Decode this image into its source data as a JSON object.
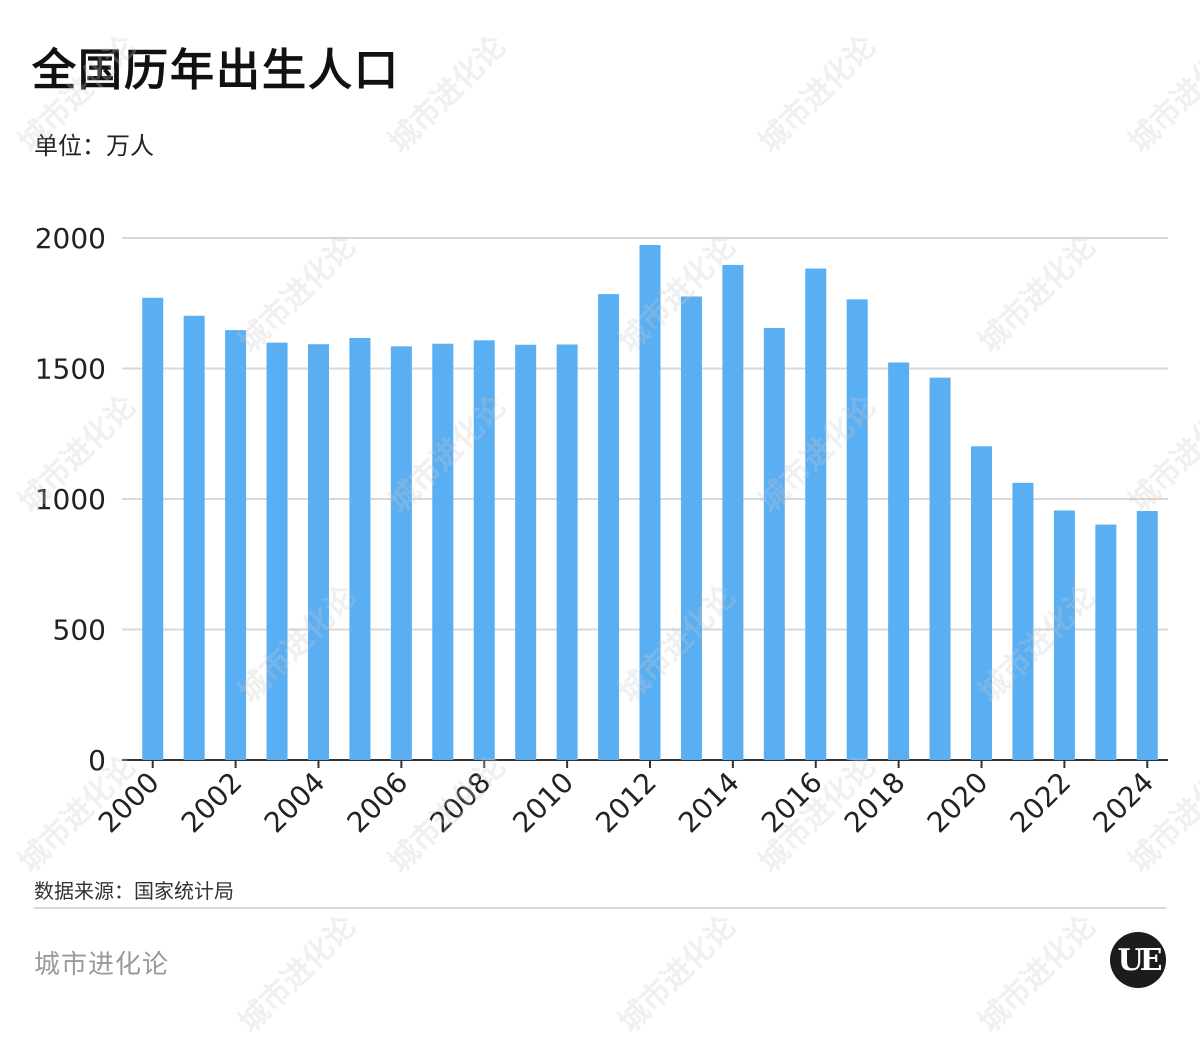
{
  "title": "全国历年出生人口",
  "unit_label": "单位：万人",
  "source": "数据来源：国家统计局",
  "brand": "城市进化论",
  "logo_text": "UE",
  "watermark_text": "城市进化论",
  "colors": {
    "bar": "#5aaef2",
    "grid": "#d9d9d9",
    "axis": "#333333",
    "text": "#222222"
  },
  "chart_data": {
    "type": "bar",
    "title": "全国历年出生人口",
    "ylabel": "单位：万人",
    "xlabel": "",
    "ylim": [
      0,
      2000
    ],
    "yticks": [
      0,
      500,
      1000,
      1500,
      2000
    ],
    "grid": true,
    "categories": [
      "2000",
      "2001",
      "2002",
      "2003",
      "2004",
      "2005",
      "2006",
      "2007",
      "2008",
      "2009",
      "2010",
      "2011",
      "2012",
      "2013",
      "2014",
      "2015",
      "2016",
      "2017",
      "2018",
      "2019",
      "2020",
      "2021",
      "2022",
      "2023",
      "2024"
    ],
    "xtick_labels": [
      "2000",
      "2002",
      "2004",
      "2006",
      "2008",
      "2010",
      "2012",
      "2014",
      "2016",
      "2018",
      "2020",
      "2022",
      "2024"
    ],
    "values": [
      1771,
      1702,
      1647,
      1599,
      1593,
      1617,
      1585,
      1595,
      1608,
      1591,
      1592,
      1785,
      1973,
      1776,
      1897,
      1655,
      1883,
      1765,
      1523,
      1465,
      1202,
      1062,
      956,
      902,
      954
    ]
  }
}
